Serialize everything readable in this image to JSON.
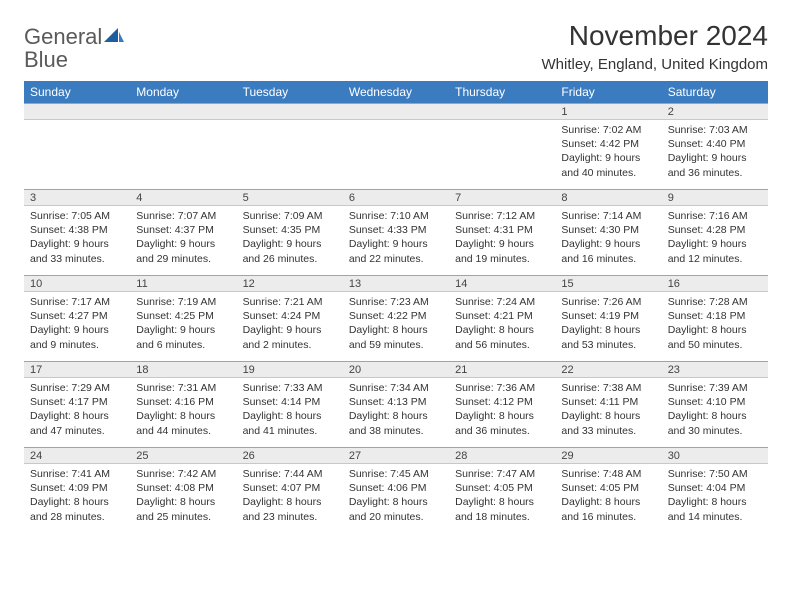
{
  "logo": {
    "text1": "General",
    "text2": "Blue"
  },
  "title": "November 2024",
  "location": "Whitley, England, United Kingdom",
  "colors": {
    "header_bg": "#3b7bbf",
    "header_text": "#ffffff",
    "daynum_bg": "#ececec",
    "daynum_border_top": "#9aa5b0",
    "body_text": "#333333",
    "logo_gray": "#5a5a5a",
    "logo_blue": "#3b7bbf"
  },
  "typography": {
    "title_fontsize": 28,
    "location_fontsize": 15,
    "weekday_fontsize": 12,
    "daynum_fontsize": 11,
    "cell_fontsize": 10.5
  },
  "weekdays": [
    "Sunday",
    "Monday",
    "Tuesday",
    "Wednesday",
    "Thursday",
    "Friday",
    "Saturday"
  ],
  "weeks": [
    [
      null,
      null,
      null,
      null,
      null,
      {
        "day": "1",
        "sunrise": "Sunrise: 7:02 AM",
        "sunset": "Sunset: 4:42 PM",
        "daylight": "Daylight: 9 hours and 40 minutes."
      },
      {
        "day": "2",
        "sunrise": "Sunrise: 7:03 AM",
        "sunset": "Sunset: 4:40 PM",
        "daylight": "Daylight: 9 hours and 36 minutes."
      }
    ],
    [
      {
        "day": "3",
        "sunrise": "Sunrise: 7:05 AM",
        "sunset": "Sunset: 4:38 PM",
        "daylight": "Daylight: 9 hours and 33 minutes."
      },
      {
        "day": "4",
        "sunrise": "Sunrise: 7:07 AM",
        "sunset": "Sunset: 4:37 PM",
        "daylight": "Daylight: 9 hours and 29 minutes."
      },
      {
        "day": "5",
        "sunrise": "Sunrise: 7:09 AM",
        "sunset": "Sunset: 4:35 PM",
        "daylight": "Daylight: 9 hours and 26 minutes."
      },
      {
        "day": "6",
        "sunrise": "Sunrise: 7:10 AM",
        "sunset": "Sunset: 4:33 PM",
        "daylight": "Daylight: 9 hours and 22 minutes."
      },
      {
        "day": "7",
        "sunrise": "Sunrise: 7:12 AM",
        "sunset": "Sunset: 4:31 PM",
        "daylight": "Daylight: 9 hours and 19 minutes."
      },
      {
        "day": "8",
        "sunrise": "Sunrise: 7:14 AM",
        "sunset": "Sunset: 4:30 PM",
        "daylight": "Daylight: 9 hours and 16 minutes."
      },
      {
        "day": "9",
        "sunrise": "Sunrise: 7:16 AM",
        "sunset": "Sunset: 4:28 PM",
        "daylight": "Daylight: 9 hours and 12 minutes."
      }
    ],
    [
      {
        "day": "10",
        "sunrise": "Sunrise: 7:17 AM",
        "sunset": "Sunset: 4:27 PM",
        "daylight": "Daylight: 9 hours and 9 minutes."
      },
      {
        "day": "11",
        "sunrise": "Sunrise: 7:19 AM",
        "sunset": "Sunset: 4:25 PM",
        "daylight": "Daylight: 9 hours and 6 minutes."
      },
      {
        "day": "12",
        "sunrise": "Sunrise: 7:21 AM",
        "sunset": "Sunset: 4:24 PM",
        "daylight": "Daylight: 9 hours and 2 minutes."
      },
      {
        "day": "13",
        "sunrise": "Sunrise: 7:23 AM",
        "sunset": "Sunset: 4:22 PM",
        "daylight": "Daylight: 8 hours and 59 minutes."
      },
      {
        "day": "14",
        "sunrise": "Sunrise: 7:24 AM",
        "sunset": "Sunset: 4:21 PM",
        "daylight": "Daylight: 8 hours and 56 minutes."
      },
      {
        "day": "15",
        "sunrise": "Sunrise: 7:26 AM",
        "sunset": "Sunset: 4:19 PM",
        "daylight": "Daylight: 8 hours and 53 minutes."
      },
      {
        "day": "16",
        "sunrise": "Sunrise: 7:28 AM",
        "sunset": "Sunset: 4:18 PM",
        "daylight": "Daylight: 8 hours and 50 minutes."
      }
    ],
    [
      {
        "day": "17",
        "sunrise": "Sunrise: 7:29 AM",
        "sunset": "Sunset: 4:17 PM",
        "daylight": "Daylight: 8 hours and 47 minutes."
      },
      {
        "day": "18",
        "sunrise": "Sunrise: 7:31 AM",
        "sunset": "Sunset: 4:16 PM",
        "daylight": "Daylight: 8 hours and 44 minutes."
      },
      {
        "day": "19",
        "sunrise": "Sunrise: 7:33 AM",
        "sunset": "Sunset: 4:14 PM",
        "daylight": "Daylight: 8 hours and 41 minutes."
      },
      {
        "day": "20",
        "sunrise": "Sunrise: 7:34 AM",
        "sunset": "Sunset: 4:13 PM",
        "daylight": "Daylight: 8 hours and 38 minutes."
      },
      {
        "day": "21",
        "sunrise": "Sunrise: 7:36 AM",
        "sunset": "Sunset: 4:12 PM",
        "daylight": "Daylight: 8 hours and 36 minutes."
      },
      {
        "day": "22",
        "sunrise": "Sunrise: 7:38 AM",
        "sunset": "Sunset: 4:11 PM",
        "daylight": "Daylight: 8 hours and 33 minutes."
      },
      {
        "day": "23",
        "sunrise": "Sunrise: 7:39 AM",
        "sunset": "Sunset: 4:10 PM",
        "daylight": "Daylight: 8 hours and 30 minutes."
      }
    ],
    [
      {
        "day": "24",
        "sunrise": "Sunrise: 7:41 AM",
        "sunset": "Sunset: 4:09 PM",
        "daylight": "Daylight: 8 hours and 28 minutes."
      },
      {
        "day": "25",
        "sunrise": "Sunrise: 7:42 AM",
        "sunset": "Sunset: 4:08 PM",
        "daylight": "Daylight: 8 hours and 25 minutes."
      },
      {
        "day": "26",
        "sunrise": "Sunrise: 7:44 AM",
        "sunset": "Sunset: 4:07 PM",
        "daylight": "Daylight: 8 hours and 23 minutes."
      },
      {
        "day": "27",
        "sunrise": "Sunrise: 7:45 AM",
        "sunset": "Sunset: 4:06 PM",
        "daylight": "Daylight: 8 hours and 20 minutes."
      },
      {
        "day": "28",
        "sunrise": "Sunrise: 7:47 AM",
        "sunset": "Sunset: 4:05 PM",
        "daylight": "Daylight: 8 hours and 18 minutes."
      },
      {
        "day": "29",
        "sunrise": "Sunrise: 7:48 AM",
        "sunset": "Sunset: 4:05 PM",
        "daylight": "Daylight: 8 hours and 16 minutes."
      },
      {
        "day": "30",
        "sunrise": "Sunrise: 7:50 AM",
        "sunset": "Sunset: 4:04 PM",
        "daylight": "Daylight: 8 hours and 14 minutes."
      }
    ]
  ]
}
